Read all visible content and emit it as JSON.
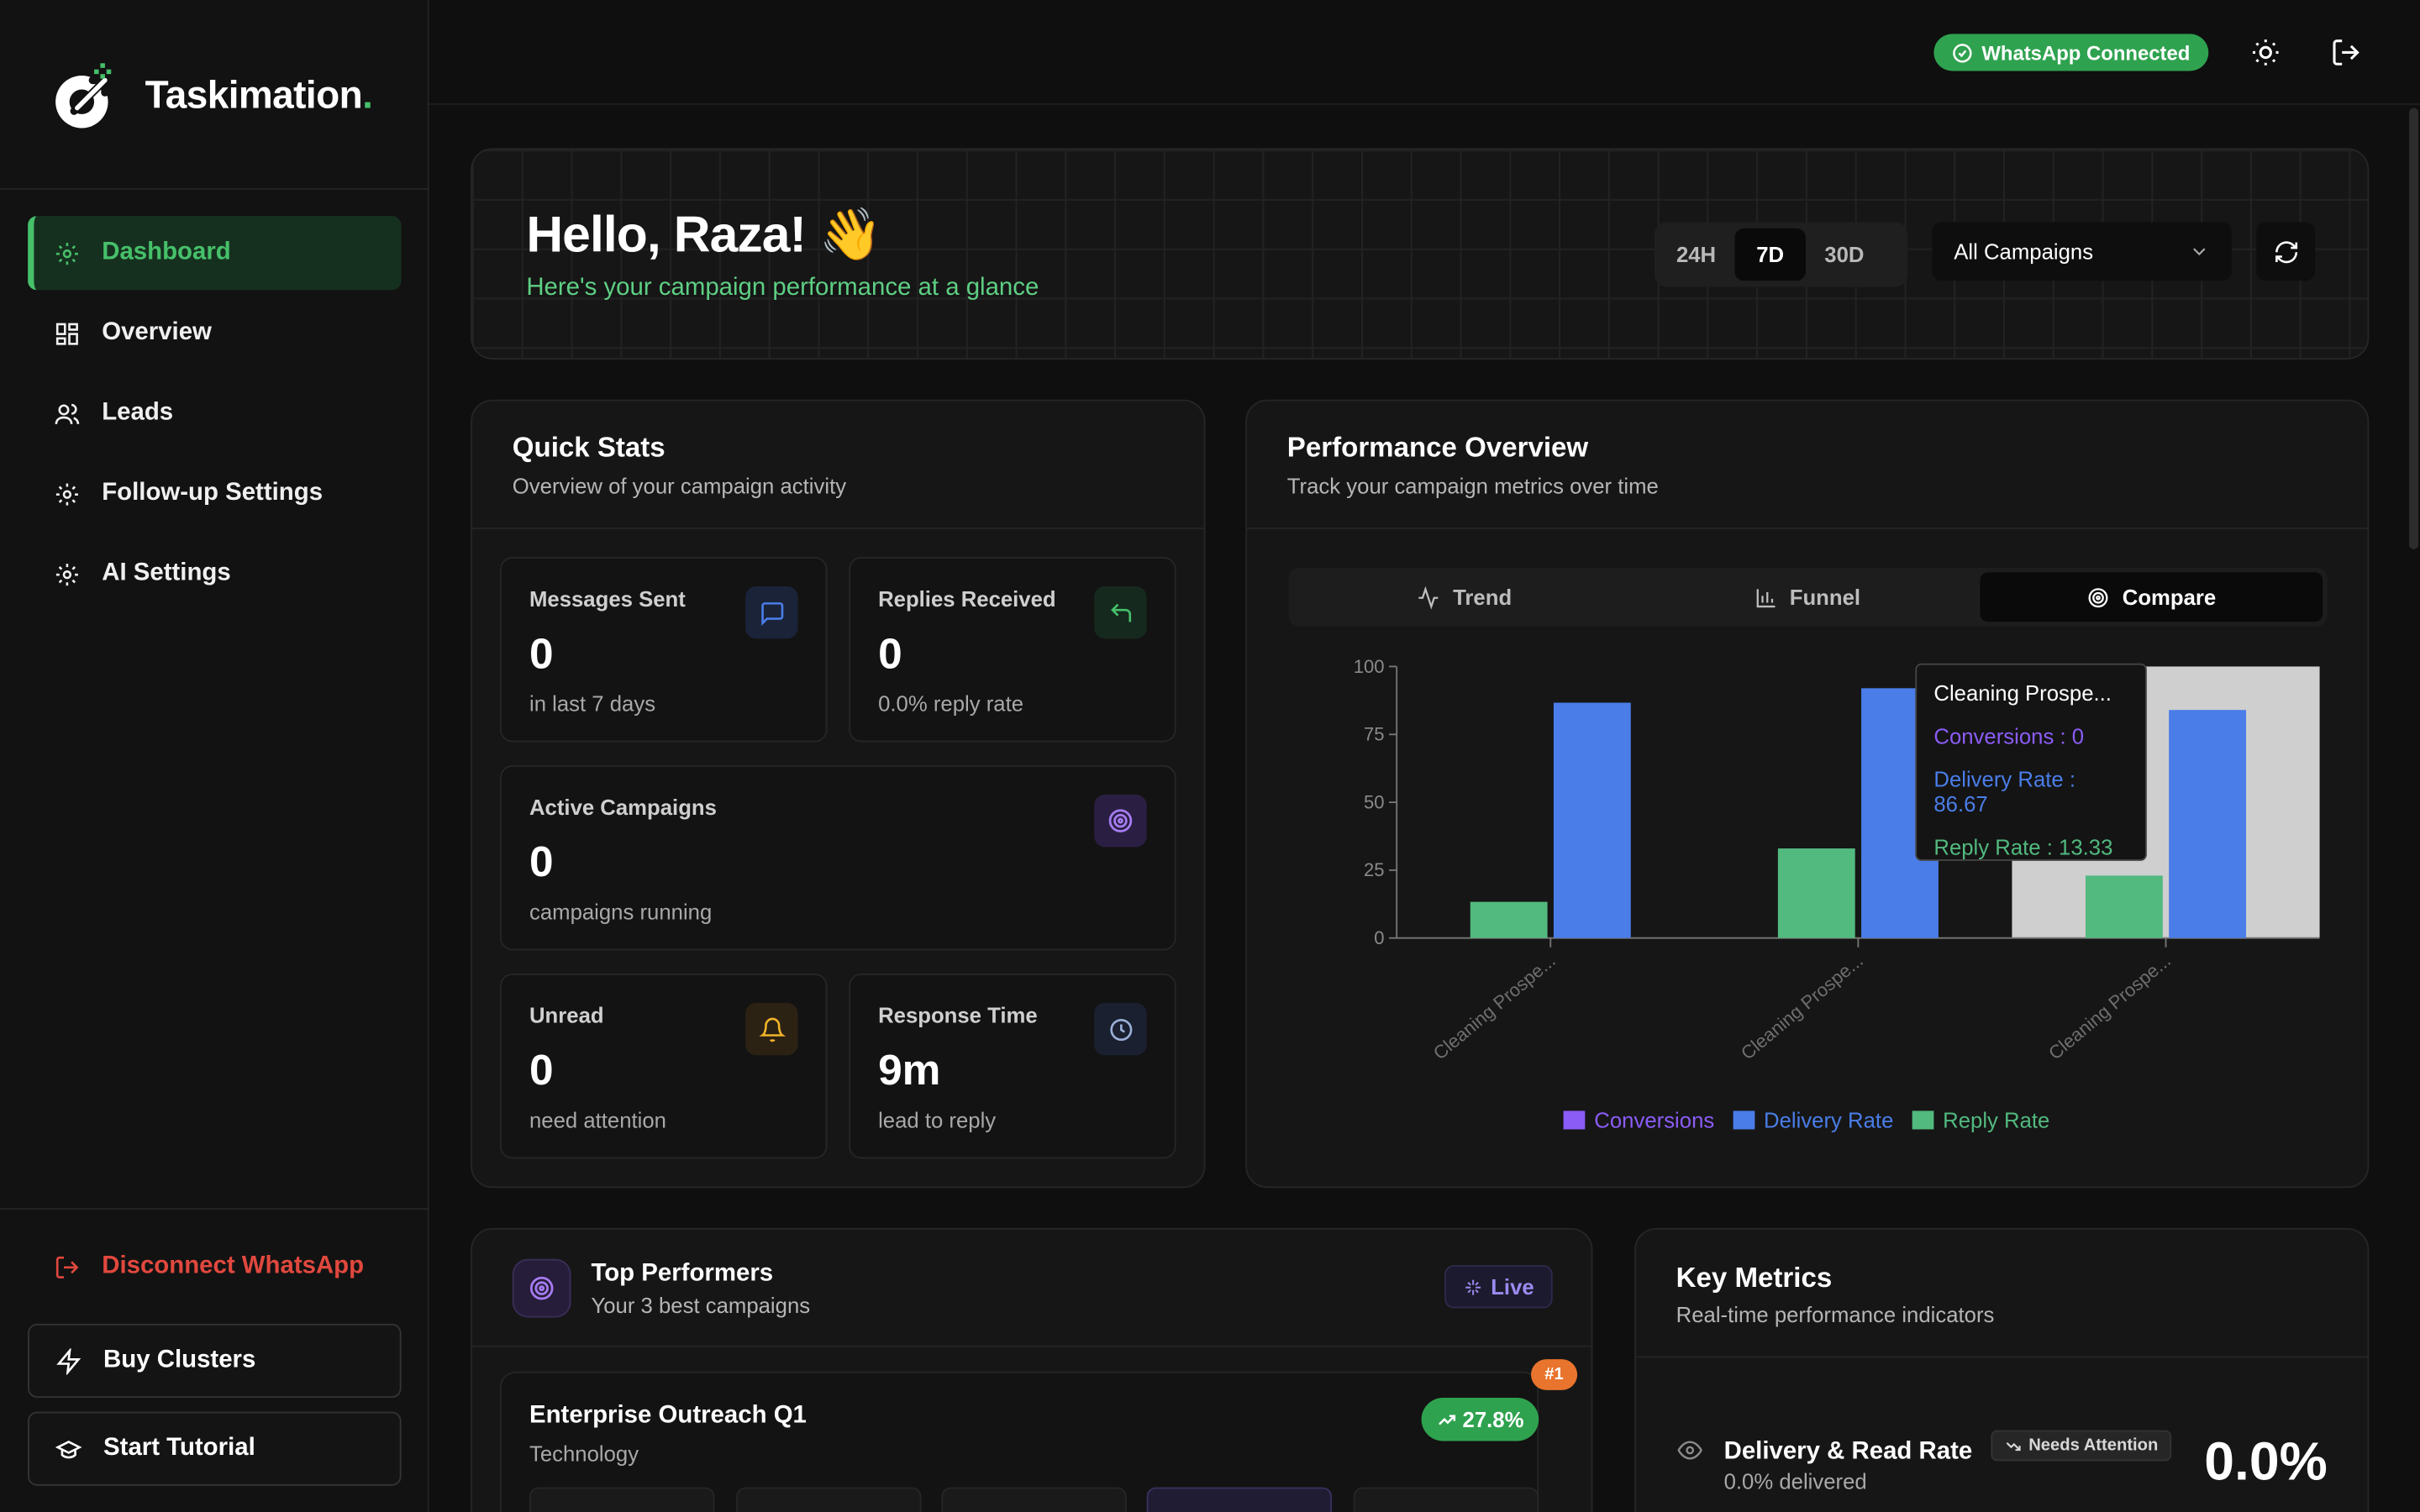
{
  "brand": {
    "name": "Taskimation",
    "accent": "#46c06a"
  },
  "sidebar": {
    "items": [
      {
        "label": "Dashboard",
        "icon": "gear-icon",
        "active": true
      },
      {
        "label": "Overview",
        "icon": "grid-icon"
      },
      {
        "label": "Leads",
        "icon": "users-icon"
      },
      {
        "label": "Follow-up Settings",
        "icon": "gear-icon"
      },
      {
        "label": "AI Settings",
        "icon": "gear-icon"
      }
    ],
    "disconnect_label": "Disconnect WhatsApp",
    "buy_label": "Buy Clusters",
    "tutorial_label": "Start Tutorial"
  },
  "topbar": {
    "status": "WhatsApp Connected",
    "status_color": "#2fa24f"
  },
  "hero": {
    "greeting": "Hello, Raza! 👋",
    "subtitle": "Here's your campaign performance at a glance",
    "ranges": [
      "24H",
      "7D",
      "30D"
    ],
    "selected_range": "7D",
    "campaign_select": "All Campaigns"
  },
  "quick_stats": {
    "title": "Quick Stats",
    "subtitle": "Overview of your campaign activity",
    "stats": [
      {
        "label": "Messages Sent",
        "value": "0",
        "note": "in last 7 days",
        "icon": "message-icon"
      },
      {
        "label": "Replies Received",
        "value": "0",
        "note": "0.0% reply rate",
        "icon": "reply-icon"
      },
      {
        "label": "Active Campaigns",
        "value": "0",
        "note": "campaigns running",
        "icon": "target-icon"
      },
      {
        "label": "Unread",
        "value": "0",
        "note": "need attention",
        "icon": "bell-icon"
      },
      {
        "label": "Response Time",
        "value": "9m",
        "note": "lead to reply",
        "icon": "clock-icon"
      }
    ]
  },
  "performance": {
    "title": "Performance Overview",
    "subtitle": "Track your campaign metrics over time",
    "tabs": [
      "Trend",
      "Funnel",
      "Compare"
    ],
    "active_tab": "Compare",
    "tooltip": {
      "title": "Cleaning Prospe...",
      "conversions": "Conversions : 0",
      "delivery": "Delivery Rate : 86.67",
      "reply": "Reply Rate : 13.33"
    }
  },
  "chart_data": {
    "type": "bar",
    "categories": [
      "Cleaning Prospe...",
      "Cleaning Prospe...",
      "Cleaning Prospe..."
    ],
    "series": [
      {
        "name": "Conversions",
        "values": [
          0,
          0,
          0
        ],
        "color": "#8b5cf6"
      },
      {
        "name": "Delivery Rate",
        "values": [
          86.67,
          92,
          84
        ],
        "color": "#4a7de8"
      },
      {
        "name": "Reply Rate",
        "values": [
          13.33,
          33,
          23
        ],
        "color": "#52b97f"
      }
    ],
    "ylim": [
      0,
      100
    ],
    "yticks": [
      0,
      25,
      50,
      75,
      100
    ],
    "highlight_index": 2,
    "legend": "bottom"
  },
  "top_performers": {
    "title": "Top Performers",
    "subtitle": "Your 3 best campaigns",
    "live_label": "Live",
    "items": [
      {
        "name": "Enterprise Outreach Q1",
        "category": "Technology",
        "rank": "#1",
        "growth": "27.8%"
      }
    ]
  },
  "key_metrics": {
    "title": "Key Metrics",
    "subtitle": "Real-time performance indicators",
    "rows": [
      {
        "label": "Delivery & Read Rate",
        "badge": "Needs Attention",
        "sub": "0.0% delivered",
        "value": "0.0%"
      }
    ]
  }
}
